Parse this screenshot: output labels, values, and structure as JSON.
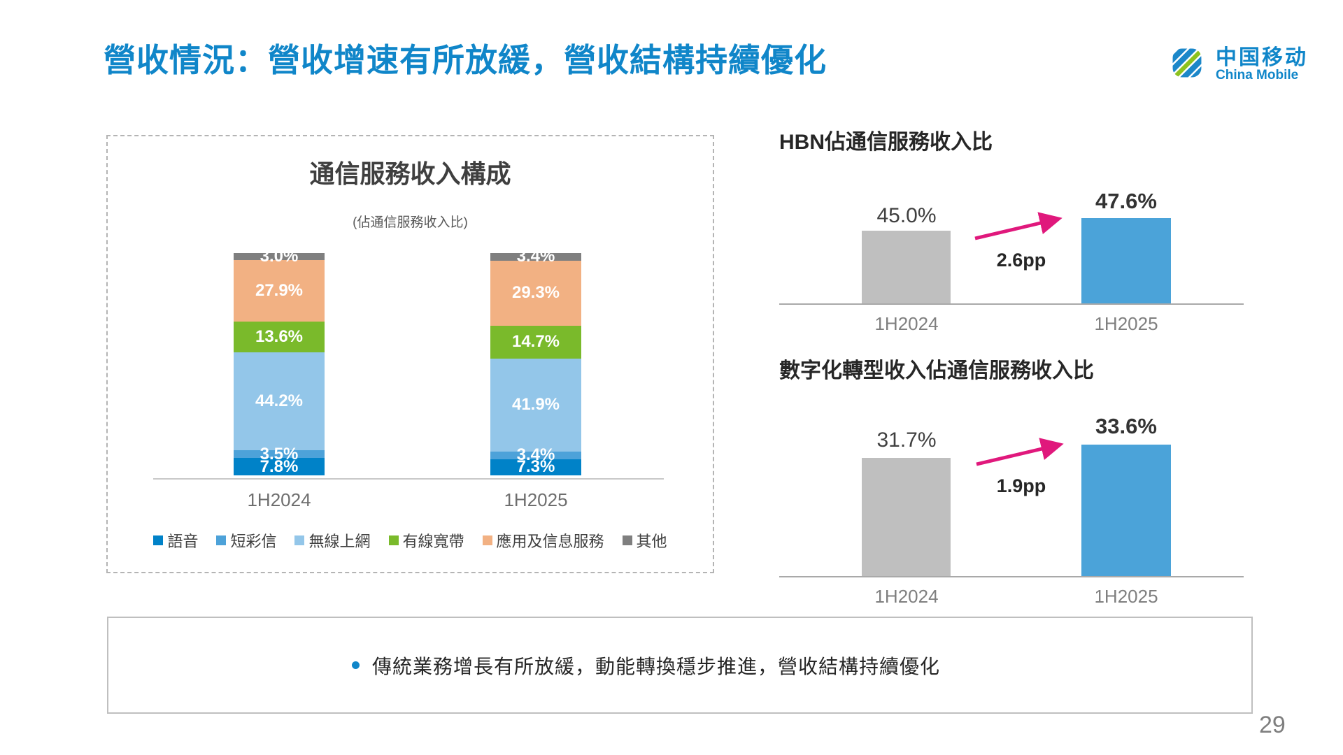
{
  "slide": {
    "title": "營收情況：營收增速有所放緩，營收結構持續優化",
    "page_number": "29",
    "note_bullet": "傳統業務增長有所放緩，動能轉換穩步推進，營收結構持續優化"
  },
  "logo": {
    "cn": "中国移动",
    "en": "China Mobile"
  },
  "colors": {
    "title_blue": "#1086C9",
    "arrow_magenta": "#E0187C",
    "bar_gray": "#BFBFBF",
    "bar_blue": "#4BA3D9"
  },
  "chart_data": [
    {
      "id": "service-revenue-mix",
      "type": "bar",
      "stacked": true,
      "title": "通信服務收入構成",
      "subtitle": "(佔通信服務收入比)",
      "categories": [
        "1H2024",
        "1H2025"
      ],
      "series": [
        {
          "name": "語音",
          "color": "#0082C8",
          "values": [
            7.8,
            7.3
          ]
        },
        {
          "name": "短彩信",
          "color": "#4DA2D9",
          "values": [
            3.5,
            3.4
          ]
        },
        {
          "name": "無線上網",
          "color": "#93C6E9",
          "values": [
            44.2,
            41.9
          ]
        },
        {
          "name": "有線寬帶",
          "color": "#7ABA2B",
          "values": [
            13.6,
            14.7
          ]
        },
        {
          "name": "應用及信息服務",
          "color": "#F2B183",
          "values": [
            27.9,
            29.3
          ]
        },
        {
          "name": "其他",
          "color": "#7F7F7F",
          "values": [
            3.0,
            3.4
          ]
        }
      ],
      "value_suffix": "%",
      "ylim": [
        0,
        100
      ],
      "legend_position": "bottom",
      "grid": false
    },
    {
      "id": "hbn-share",
      "type": "bar",
      "title": "HBN佔通信服務收入比",
      "categories": [
        "1H2024",
        "1H2025"
      ],
      "values": [
        45.0,
        47.6
      ],
      "labels": [
        "45.0%",
        "47.6%"
      ],
      "delta": "2.6pp",
      "bar_colors": [
        "#BFBFBF",
        "#4BA3D9"
      ],
      "grid": false
    },
    {
      "id": "digital-transformation-share",
      "type": "bar",
      "title": "數字化轉型收入佔通信服務收入比",
      "categories": [
        "1H2024",
        "1H2025"
      ],
      "values": [
        31.7,
        33.6
      ],
      "labels": [
        "31.7%",
        "33.6%"
      ],
      "delta": "1.9pp",
      "bar_colors": [
        "#BFBFBF",
        "#4BA3D9"
      ],
      "grid": false
    }
  ]
}
